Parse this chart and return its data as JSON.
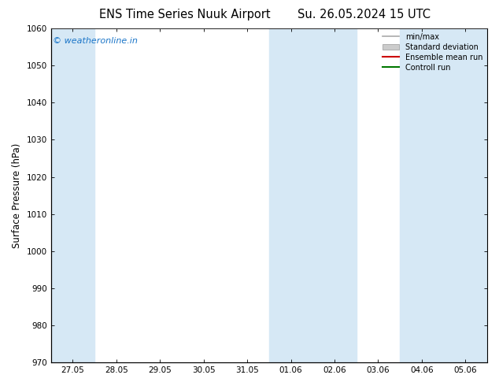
{
  "title_left": "ENS Time Series Nuuk Airport",
  "title_right": "Su. 26.05.2024 15 UTC",
  "ylabel": "Surface Pressure (hPa)",
  "ylim": [
    970,
    1060
  ],
  "yticks": [
    970,
    980,
    990,
    1000,
    1010,
    1020,
    1030,
    1040,
    1050,
    1060
  ],
  "x_labels": [
    "27.05",
    "28.05",
    "29.05",
    "30.05",
    "31.05",
    "01.06",
    "02.06",
    "03.06",
    "04.06",
    "05.06"
  ],
  "x_positions": [
    0,
    1,
    2,
    3,
    4,
    5,
    6,
    7,
    8,
    9
  ],
  "xlim": [
    -0.5,
    9.5
  ],
  "shade_bands": [
    {
      "x_start": -0.5,
      "x_end": 0.5
    },
    {
      "x_start": 4.5,
      "x_end": 6.5
    },
    {
      "x_start": 7.5,
      "x_end": 9.5
    }
  ],
  "shade_color": "#d6e8f5",
  "background_color": "#ffffff",
  "watermark_text": "© weatheronline.in",
  "watermark_color": "#1a75c8",
  "legend_items": [
    {
      "label": "min/max",
      "color": "#aaaaaa",
      "lw": 1.2,
      "patch": false
    },
    {
      "label": "Standard deviation",
      "color": "#cccccc",
      "lw": 8,
      "patch": true
    },
    {
      "label": "Ensemble mean run",
      "color": "#cc0000",
      "lw": 1.5,
      "patch": false
    },
    {
      "label": "Controll run",
      "color": "#007700",
      "lw": 1.5,
      "patch": false
    }
  ],
  "spine_color": "#444444",
  "tick_fontsize": 7.5,
  "label_fontsize": 8.5,
  "title_fontsize": 10.5,
  "watermark_fontsize": 8
}
